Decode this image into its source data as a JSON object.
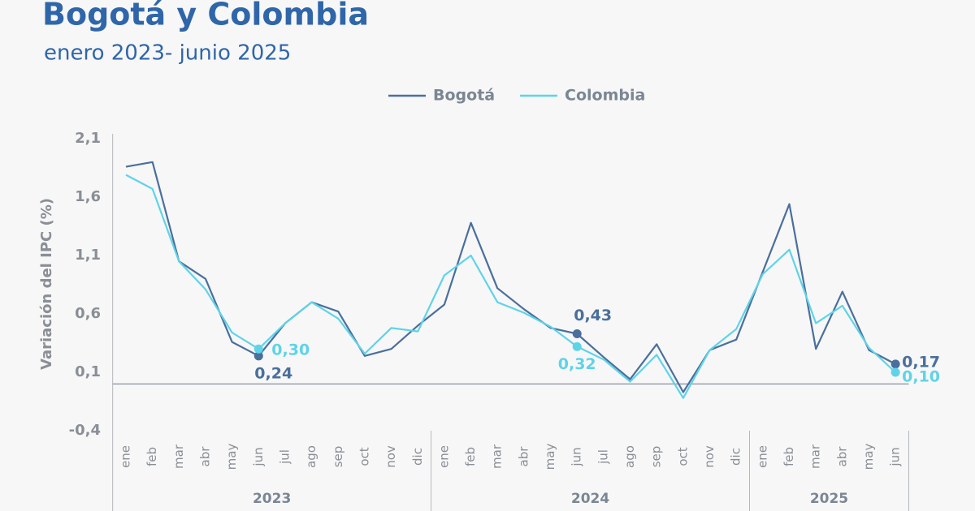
{
  "chart_data": {
    "type": "line",
    "title": "Bogotá y Colombia",
    "subtitle": "enero 2023- junio 2025",
    "y_label": "Variación del IPC (%)",
    "groups": [
      {
        "name": "2023",
        "categories": [
          "ene",
          "feb",
          "mar",
          "abr",
          "may",
          "jun",
          "jul",
          "ago",
          "sep",
          "oct",
          "nov",
          "dic"
        ]
      },
      {
        "name": "2024",
        "categories": [
          "ene",
          "feb",
          "mar",
          "abr",
          "may",
          "jun",
          "jul",
          "ago",
          "sep",
          "oct",
          "nov",
          "dic"
        ]
      },
      {
        "name": "2025",
        "categories": [
          "ene",
          "feb",
          "mar",
          "abr",
          "may",
          "jun"
        ]
      }
    ],
    "series": [
      {
        "name": "Bogotá",
        "color": "#4a6f9c",
        "values": [
          1.86,
          1.9,
          1.05,
          0.9,
          0.36,
          0.24,
          0.52,
          0.7,
          0.62,
          0.24,
          0.3,
          0.5,
          0.68,
          1.38,
          0.82,
          0.64,
          0.48,
          0.43,
          0.23,
          0.04,
          0.34,
          -0.07,
          0.29,
          0.38,
          0.96,
          1.54,
          0.3,
          0.79,
          0.29,
          0.17
        ],
        "value_labels": [
          null,
          null,
          null,
          null,
          null,
          "0,24",
          null,
          null,
          null,
          null,
          null,
          null,
          null,
          null,
          null,
          null,
          null,
          "0,43",
          null,
          null,
          null,
          null,
          null,
          null,
          null,
          null,
          null,
          null,
          null,
          "0,17"
        ]
      },
      {
        "name": "Colombia",
        "color": "#5fd3e8",
        "values": [
          1.79,
          1.67,
          1.05,
          0.81,
          0.44,
          0.3,
          0.52,
          0.7,
          0.56,
          0.26,
          0.48,
          0.45,
          0.93,
          1.1,
          0.7,
          0.61,
          0.49,
          0.32,
          0.21,
          0.02,
          0.25,
          -0.12,
          0.29,
          0.47,
          0.94,
          1.15,
          0.52,
          0.67,
          0.31,
          0.1
        ],
        "value_labels": [
          null,
          null,
          null,
          null,
          null,
          "0,30",
          null,
          null,
          null,
          null,
          null,
          null,
          null,
          null,
          null,
          null,
          null,
          "0,32",
          null,
          null,
          null,
          null,
          null,
          null,
          null,
          null,
          null,
          null,
          null,
          "0,10"
        ]
      }
    ],
    "ylim": [
      -0.4,
      2.1
    ],
    "yticks": [
      {
        "value": -0.4,
        "label": "-0,4"
      },
      {
        "value": 0.1,
        "label": "0,1"
      },
      {
        "value": 0.6,
        "label": "0,6"
      },
      {
        "value": 1.1,
        "label": "1,1"
      },
      {
        "value": 1.6,
        "label": "1,6"
      },
      {
        "value": 2.1,
        "label": "2,1"
      }
    ],
    "legend": "top"
  }
}
